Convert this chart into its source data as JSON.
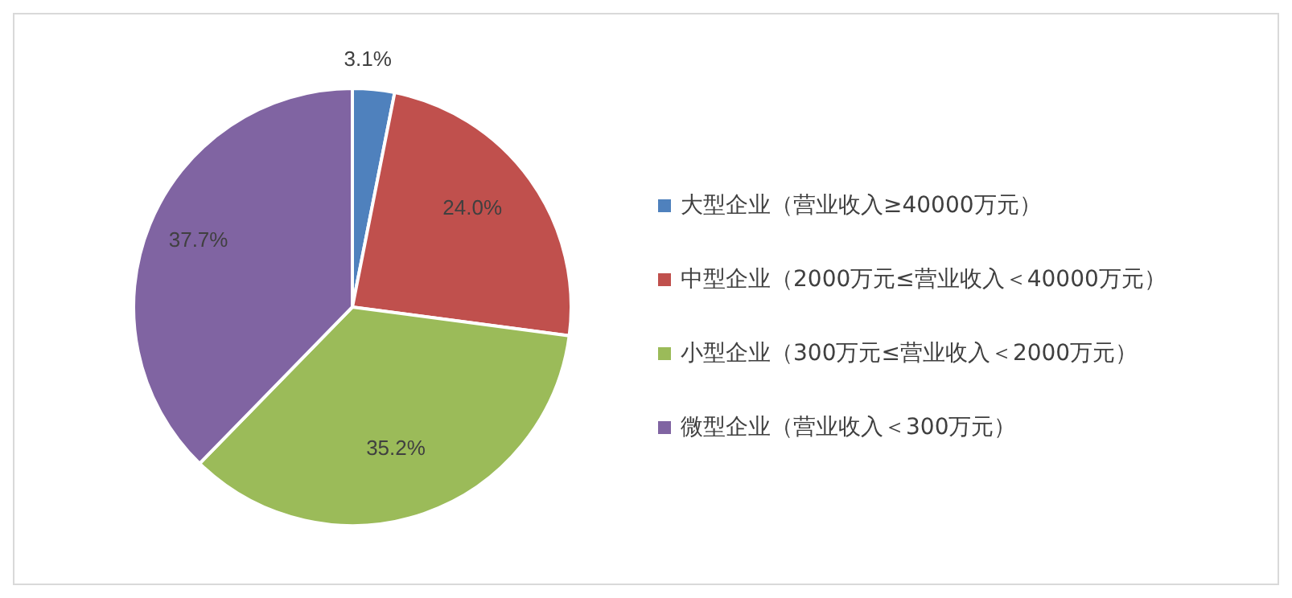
{
  "chart_data": {
    "type": "pie",
    "categories": [
      "大型企业（营业收入≥40000万元）",
      "中型企业（2000万元≤营业收入＜40000万元）",
      "小型企业（300万元≤营业收入＜2000万元）",
      "微型企业（营业收入＜300万元）"
    ],
    "values": [
      3.1,
      24.0,
      35.2,
      37.7
    ],
    "colors": [
      "#4f81bd",
      "#c0504d",
      "#9bbb59",
      "#8064a2"
    ],
    "value_labels": [
      "3.1%",
      "24.0%",
      "35.2%",
      "37.7%"
    ],
    "legend": "right"
  }
}
